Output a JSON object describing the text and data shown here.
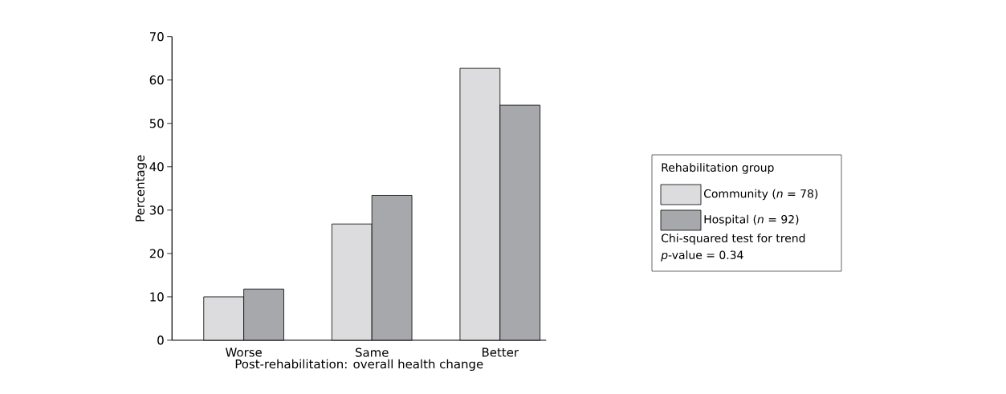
{
  "chart_data": {
    "type": "bar",
    "xlabel": "Post-rehabilitation: overall health change",
    "ylabel": "Percentage",
    "categories": [
      "Worse",
      "Same",
      "Better"
    ],
    "series": [
      {
        "name": "Community (*n* = 78)",
        "color": "#dcdcde",
        "values": [
          10.0,
          26.8,
          62.7
        ]
      },
      {
        "name": "Hospital (*n* = 92)",
        "color": "#a7a8ab",
        "values": [
          11.8,
          33.4,
          54.2
        ]
      }
    ],
    "ylim": [
      0,
      70
    ],
    "yticks": [
      0,
      10,
      20,
      30,
      40,
      50,
      60,
      70
    ],
    "legend": "right",
    "legend_title": "Rehabilitation group",
    "annotations": [
      "Chi-squared test for trend",
      "*p*-value = 0.34"
    ]
  }
}
